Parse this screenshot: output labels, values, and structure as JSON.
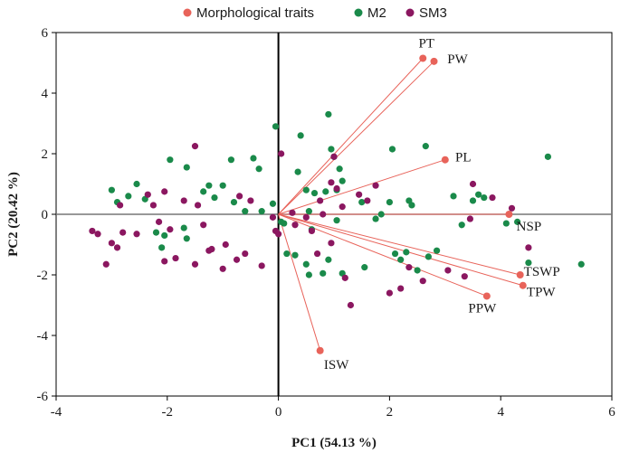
{
  "chart_data": {
    "type": "scatter",
    "title": "",
    "xlabel": "PC1 (54.13 %)",
    "ylabel": "PC2 (20.42 %)",
    "xlim": [
      -4,
      6
    ],
    "ylim": [
      -6,
      6
    ],
    "xticks": [
      -4,
      -2,
      0,
      2,
      4,
      6
    ],
    "yticks": [
      -6,
      -4,
      -2,
      0,
      2,
      4,
      6
    ],
    "grid": false,
    "legend_position": "top",
    "colors": {
      "traits": "#e8635a",
      "m2": "#1a8a4a",
      "sm3": "#8b1760",
      "axis": "#000000",
      "zero_line": "#777777"
    },
    "legend": [
      "Morphological traits",
      "M2",
      "SM3"
    ],
    "traits": [
      {
        "label": "PT",
        "x": 2.6,
        "y": 5.15
      },
      {
        "label": "PW",
        "x": 2.8,
        "y": 5.05
      },
      {
        "label": "PL",
        "x": 3.0,
        "y": 1.8
      },
      {
        "label": "NSP",
        "x": 4.15,
        "y": 0.0
      },
      {
        "label": "TSWP",
        "x": 4.35,
        "y": -2.0
      },
      {
        "label": "TPW",
        "x": 4.4,
        "y": -2.35
      },
      {
        "label": "PPW",
        "x": 3.75,
        "y": -2.7
      },
      {
        "label": "ISW",
        "x": 0.75,
        "y": -4.5
      }
    ],
    "series": [
      {
        "name": "M2",
        "points": [
          [
            -3.0,
            0.8
          ],
          [
            -2.9,
            0.4
          ],
          [
            -2.7,
            0.6
          ],
          [
            -2.55,
            1.0
          ],
          [
            -2.4,
            0.5
          ],
          [
            -2.2,
            -0.6
          ],
          [
            -2.1,
            -1.1
          ],
          [
            -2.05,
            -0.7
          ],
          [
            -1.95,
            1.8
          ],
          [
            -1.65,
            1.55
          ],
          [
            -1.7,
            -0.45
          ],
          [
            -1.65,
            -0.8
          ],
          [
            -1.35,
            0.75
          ],
          [
            -1.25,
            0.95
          ],
          [
            -1.15,
            0.55
          ],
          [
            -1.0,
            0.95
          ],
          [
            -0.85,
            1.8
          ],
          [
            -0.8,
            0.4
          ],
          [
            -0.6,
            0.1
          ],
          [
            -0.45,
            1.85
          ],
          [
            -0.35,
            1.5
          ],
          [
            -0.3,
            0.1
          ],
          [
            -0.1,
            0.35
          ],
          [
            -0.05,
            2.9
          ],
          [
            0.05,
            -0.25
          ],
          [
            0.1,
            -0.3
          ],
          [
            0.15,
            -1.3
          ],
          [
            0.3,
            -1.35
          ],
          [
            0.35,
            1.4
          ],
          [
            0.4,
            2.6
          ],
          [
            0.5,
            0.8
          ],
          [
            0.55,
            0.1
          ],
          [
            0.6,
            -0.5
          ],
          [
            0.65,
            0.7
          ],
          [
            0.85,
            0.75
          ],
          [
            0.9,
            3.3
          ],
          [
            0.95,
            2.15
          ],
          [
            1.0,
            1.9
          ],
          [
            1.05,
            0.8
          ],
          [
            1.1,
            1.5
          ],
          [
            1.15,
            1.1
          ],
          [
            0.5,
            -1.65
          ],
          [
            0.55,
            -2.0
          ],
          [
            0.8,
            -1.95
          ],
          [
            0.9,
            -1.5
          ],
          [
            1.05,
            -0.2
          ],
          [
            1.15,
            -1.95
          ],
          [
            1.5,
            0.4
          ],
          [
            1.55,
            -1.75
          ],
          [
            1.75,
            -0.15
          ],
          [
            1.85,
            0.0
          ],
          [
            2.0,
            0.4
          ],
          [
            2.05,
            2.15
          ],
          [
            2.1,
            -1.3
          ],
          [
            2.2,
            -1.5
          ],
          [
            2.3,
            -1.25
          ],
          [
            2.35,
            0.45
          ],
          [
            2.5,
            -1.85
          ],
          [
            2.65,
            2.25
          ],
          [
            2.7,
            -1.4
          ],
          [
            2.85,
            -1.2
          ],
          [
            3.15,
            0.6
          ],
          [
            3.3,
            -0.35
          ],
          [
            3.5,
            0.45
          ],
          [
            3.6,
            0.65
          ],
          [
            3.7,
            0.55
          ],
          [
            4.1,
            -0.3
          ],
          [
            4.5,
            -1.6
          ],
          [
            4.3,
            -0.25
          ],
          [
            4.85,
            1.9
          ],
          [
            5.45,
            -1.65
          ],
          [
            2.4,
            0.3
          ]
        ]
      },
      {
        "name": "SM3",
        "points": [
          [
            -3.35,
            -0.55
          ],
          [
            -3.25,
            -0.65
          ],
          [
            -3.1,
            -1.65
          ],
          [
            -3.0,
            -0.95
          ],
          [
            -2.9,
            -1.1
          ],
          [
            -2.85,
            0.3
          ],
          [
            -2.8,
            -0.6
          ],
          [
            -2.55,
            -0.65
          ],
          [
            -2.35,
            0.65
          ],
          [
            -2.25,
            0.3
          ],
          [
            -2.15,
            -0.25
          ],
          [
            -2.05,
            -1.55
          ],
          [
            -2.05,
            0.75
          ],
          [
            -1.95,
            -0.5
          ],
          [
            -1.85,
            -1.45
          ],
          [
            -1.7,
            0.45
          ],
          [
            -1.5,
            -1.65
          ],
          [
            -1.45,
            0.3
          ],
          [
            -1.35,
            -0.35
          ],
          [
            -1.25,
            -1.2
          ],
          [
            -1.2,
            -1.15
          ],
          [
            -1.0,
            -1.8
          ],
          [
            -0.95,
            -1.0
          ],
          [
            -0.75,
            -1.5
          ],
          [
            -0.7,
            0.6
          ],
          [
            -0.6,
            -1.3
          ],
          [
            -0.5,
            0.45
          ],
          [
            -0.3,
            -1.7
          ],
          [
            -1.5,
            2.25
          ],
          [
            -0.1,
            -0.1
          ],
          [
            -0.05,
            -0.55
          ],
          [
            0.0,
            -0.65
          ],
          [
            0.05,
            2.0
          ],
          [
            0.25,
            0.05
          ],
          [
            0.3,
            -0.35
          ],
          [
            0.5,
            -0.1
          ],
          [
            0.6,
            -0.55
          ],
          [
            0.7,
            -1.3
          ],
          [
            0.75,
            0.45
          ],
          [
            0.8,
            0.0
          ],
          [
            0.95,
            1.05
          ],
          [
            0.95,
            -0.95
          ],
          [
            1.0,
            1.9
          ],
          [
            1.05,
            0.85
          ],
          [
            1.15,
            0.25
          ],
          [
            1.2,
            -2.1
          ],
          [
            1.3,
            -3.0
          ],
          [
            1.45,
            0.65
          ],
          [
            1.6,
            0.45
          ],
          [
            1.75,
            0.95
          ],
          [
            2.0,
            -2.6
          ],
          [
            2.2,
            -2.45
          ],
          [
            2.35,
            -1.75
          ],
          [
            2.6,
            -2.2
          ],
          [
            3.05,
            -1.85
          ],
          [
            3.35,
            -2.05
          ],
          [
            3.45,
            -0.15
          ],
          [
            3.5,
            1.0
          ],
          [
            3.85,
            0.55
          ],
          [
            4.2,
            0.2
          ],
          [
            4.5,
            -1.1
          ]
        ]
      }
    ]
  }
}
